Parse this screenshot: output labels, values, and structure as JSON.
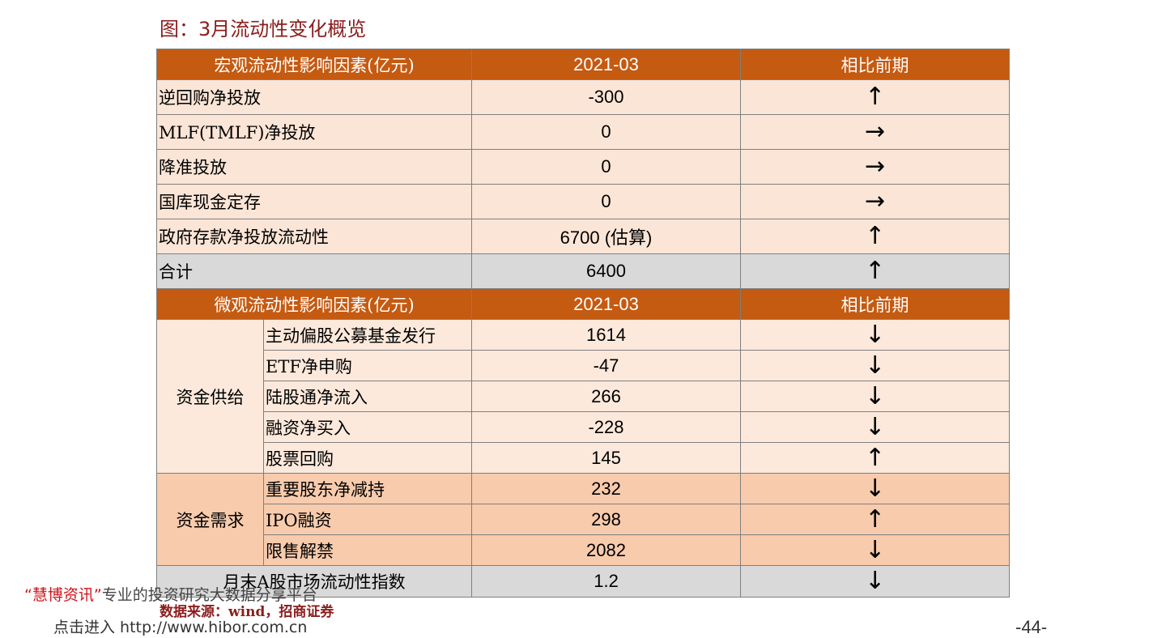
{
  "title": "图：3月流动性变化概览",
  "table": {
    "macro_header": [
      "宏观流动性影响因素(亿元)",
      "2021-03",
      "相比前期"
    ],
    "macro_rows": [
      [
        "逆回购净投放",
        "-300",
        "↑"
      ],
      [
        "MLF(TMLF)净投放",
        "0",
        "→"
      ],
      [
        "降准投放",
        "0",
        "→"
      ],
      [
        "国库现金定存",
        "0",
        "→"
      ],
      [
        "政府存款净投放流动性",
        "6700 (估算)",
        "↑"
      ],
      [
        "合计",
        "6400",
        "↑"
      ]
    ],
    "micro_header": [
      "微观流动性影响因素(亿元)",
      "2021-03",
      "相比前期"
    ],
    "micro_groups": [
      {
        "label": "资金供给",
        "rows": [
          [
            "主动偏股公募基金发行",
            "1614",
            "↓"
          ],
          [
            "ETF净申购",
            "-47",
            "↓"
          ],
          [
            "陆股通净流入",
            "266",
            "↓"
          ],
          [
            "融资净买入",
            "-228",
            "↓"
          ],
          [
            "股票回购",
            "145",
            "↑"
          ]
        ]
      },
      {
        "label": "资金需求",
        "rows": [
          [
            "重要股东净减持",
            "232",
            "↓"
          ],
          [
            "IPO融资",
            "298",
            "↑"
          ],
          [
            "限售解禁",
            "2082",
            "↓"
          ]
        ]
      }
    ],
    "index_row": [
      "月末A股市场流动性指数",
      "1.2",
      "↓"
    ]
  },
  "source": "数据来源：wind，招商证券",
  "watermark": {
    "brand": "“慧博资讯”",
    "slogan": "专业的投资研究大数据分享平台",
    "link": "点击进入 http://www.hibor.com.cn"
  },
  "page_number": "-44-"
}
